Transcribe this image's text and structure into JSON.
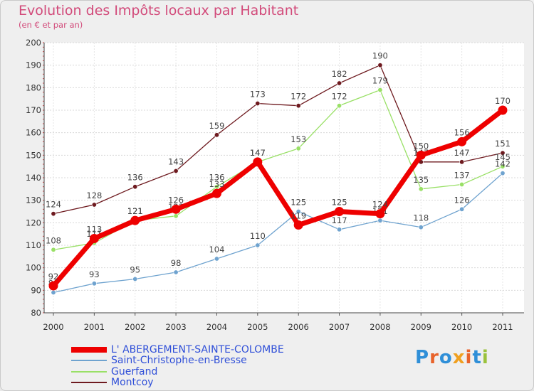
{
  "chart_data": {
    "type": "line",
    "title": "Evolution des Impôts locaux par Habitant",
    "subtitle": "(en € et par an)",
    "xlabel": "",
    "ylabel": "",
    "x": [
      "2000",
      "2001",
      "2002",
      "2003",
      "2004",
      "2005",
      "2006",
      "2007",
      "2008",
      "2009",
      "2010",
      "2011"
    ],
    "ylim": [
      80,
      200
    ],
    "yticks": [
      80,
      90,
      100,
      110,
      120,
      130,
      140,
      150,
      160,
      170,
      180,
      190,
      200
    ],
    "grid": true,
    "legend_position": "bottom-left",
    "series": [
      {
        "name": "Montcoy",
        "color": "#6e1a1f",
        "values": [
          124,
          128,
          136,
          143,
          159,
          173,
          172,
          182,
          190,
          147,
          147,
          151
        ]
      },
      {
        "name": "Guerfand",
        "color": "#99e066",
        "values": [
          108,
          111,
          121,
          123,
          136,
          147,
          153,
          172,
          179,
          135,
          137,
          145
        ]
      },
      {
        "name": "Saint-Christophe-en-Bresse",
        "color": "#6fa3cf",
        "values": [
          89,
          93,
          95,
          98,
          104,
          110,
          125,
          117,
          121,
          118,
          126,
          142
        ]
      },
      {
        "name": "L' ABERGEMENT-SAINTE-COLOMBE",
        "color": "#ee0000",
        "values": [
          92,
          113,
          121,
          126,
          133,
          147,
          119,
          125,
          124,
          150,
          156,
          170
        ]
      }
    ]
  },
  "legend": [
    {
      "label": "L' ABERGEMENT-SAINTE-COLOMBE",
      "color": "#ee0000"
    },
    {
      "label": "Saint-Christophe-en-Bresse",
      "color": "#6fa3cf"
    },
    {
      "label": "Guerfand",
      "color": "#99e066"
    },
    {
      "label": "Montcoy",
      "color": "#6e1a1f"
    }
  ],
  "brand": {
    "text": "Proxiti",
    "colors": [
      "#2f8fd8",
      "#e8632b",
      "#2f8fd8",
      "#f0a020",
      "#e8632b",
      "#2f8fd8",
      "#9ac23c"
    ]
  }
}
